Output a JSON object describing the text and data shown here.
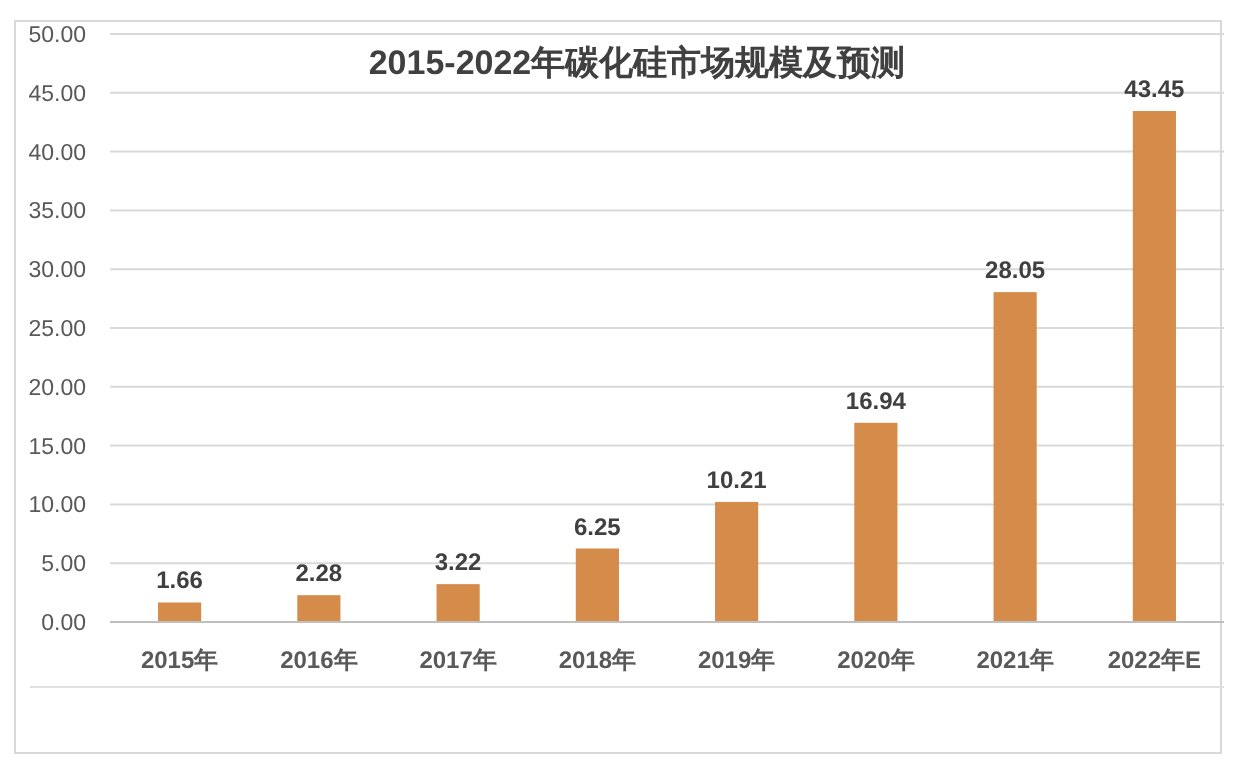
{
  "chart_data": {
    "type": "bar",
    "title": "2015-2022年碳化硅市场规模及预测",
    "categories": [
      "2015年",
      "2016年",
      "2017年",
      "2018年",
      "2019年",
      "2020年",
      "2021年",
      "2022年E"
    ],
    "values": [
      1.66,
      2.28,
      3.22,
      6.25,
      10.21,
      16.94,
      28.05,
      43.45
    ],
    "color": "#d58b4a",
    "ylim": [
      0,
      50
    ],
    "yticks": [
      {
        "value": 0,
        "label": "0.00"
      },
      {
        "value": 5,
        "label": "5.00"
      },
      {
        "value": 10,
        "label": "10.00"
      },
      {
        "value": 15,
        "label": "15.00"
      },
      {
        "value": 20,
        "label": "20.00"
      },
      {
        "value": 25,
        "label": "25.00"
      },
      {
        "value": 30,
        "label": "30.00"
      },
      {
        "value": 35,
        "label": "35.00"
      },
      {
        "value": 40,
        "label": "40.00"
      },
      {
        "value": 45,
        "label": "45.00"
      },
      {
        "value": 50,
        "label": "50.00"
      }
    ],
    "grid": "y",
    "data_labels": true
  }
}
